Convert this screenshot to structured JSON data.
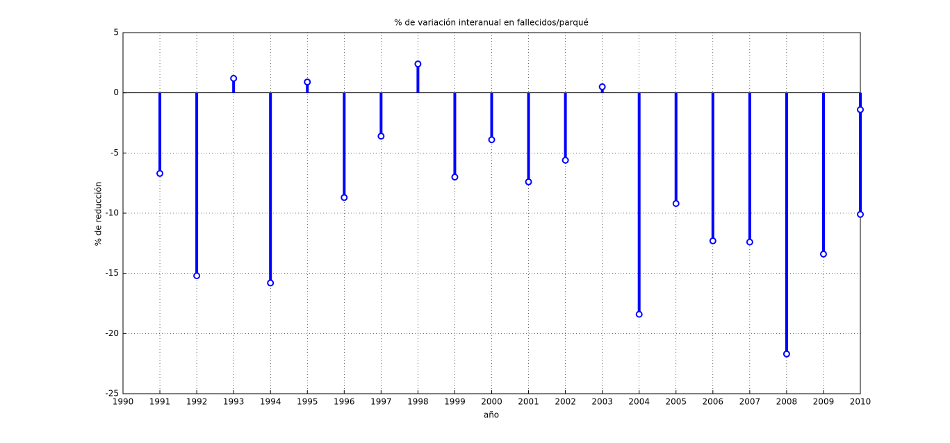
{
  "chart_data": {
    "type": "stem",
    "title": "% de variación interanual en fallecidos/parqué",
    "x_label": "año",
    "y_label": "% de reducción",
    "x": [
      1991,
      1992,
      1993,
      1994,
      1995,
      1996,
      1997,
      1998,
      1999,
      2000,
      2001,
      2002,
      2003,
      2004,
      2005,
      2006,
      2007,
      2008,
      2009,
      2010,
      2010
    ],
    "values": [
      -6.7,
      -15.2,
      1.2,
      -15.8,
      0.9,
      -8.7,
      -3.6,
      2.4,
      -7.0,
      -3.9,
      -7.4,
      -5.6,
      0.5,
      -18.4,
      -9.2,
      -12.3,
      -12.4,
      -21.7,
      -13.4,
      -10.1,
      -1.4
    ],
    "color": "#0000ff",
    "xlim": [
      1990,
      2010
    ],
    "xticks": [
      1990,
      1991,
      1992,
      1993,
      1994,
      1995,
      1996,
      1997,
      1998,
      1999,
      2000,
      2001,
      2002,
      2003,
      2004,
      2005,
      2006,
      2007,
      2008,
      2009,
      2010
    ],
    "ylim": [
      -25,
      5
    ],
    "yticks": [
      -25,
      -20,
      -15,
      -10,
      -5,
      0,
      5
    ],
    "grid": true
  }
}
